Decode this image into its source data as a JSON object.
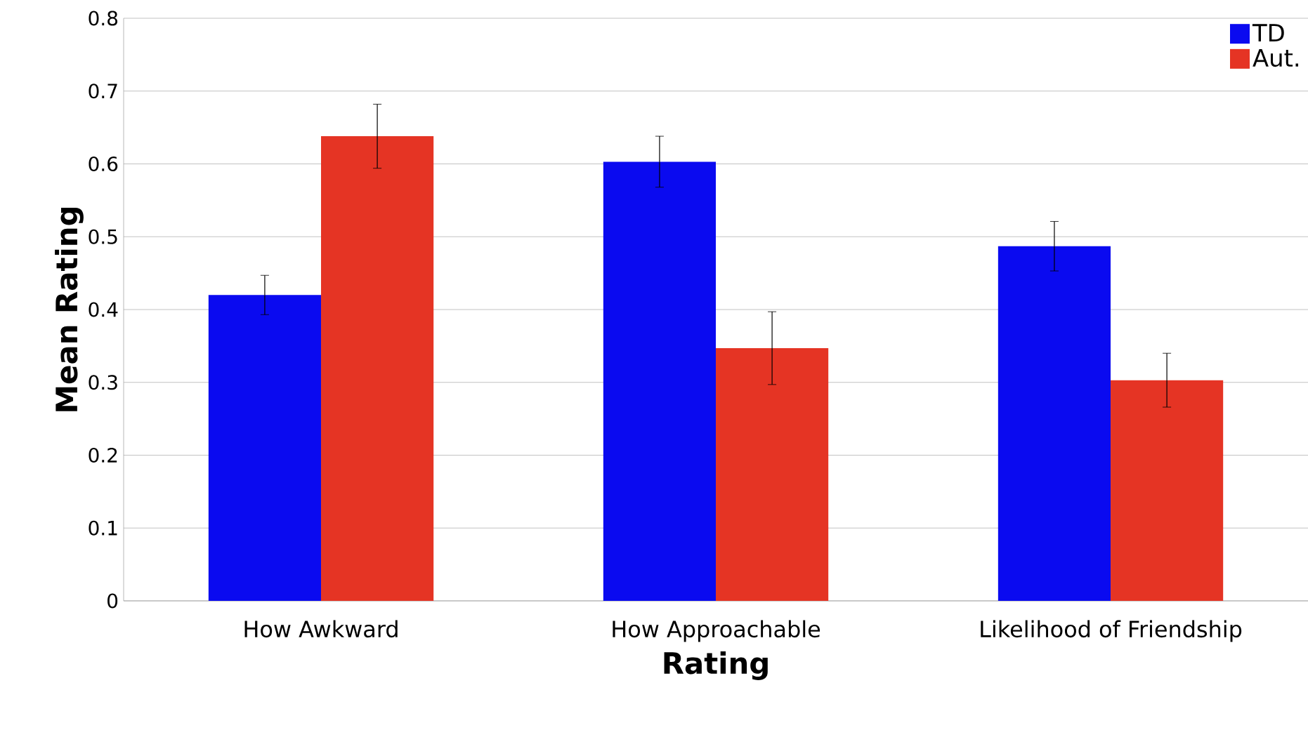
{
  "chart_data": {
    "type": "bar",
    "xlabel": "Rating",
    "ylabel": "Mean Rating",
    "categories": [
      "How Awkward",
      "How Approachable",
      "Likelihood of Friendship"
    ],
    "series": [
      {
        "name": "TD",
        "color": "#0a0af0",
        "values": [
          0.42,
          0.603,
          0.487
        ],
        "errors": [
          0.027,
          0.035,
          0.034
        ]
      },
      {
        "name": "Aut.",
        "color": "#e53424",
        "values": [
          0.638,
          0.347,
          0.303
        ],
        "errors": [
          0.044,
          0.05,
          0.037
        ]
      }
    ],
    "ylim": [
      0,
      0.8
    ],
    "yticks": [
      0,
      0.1,
      0.2,
      0.3,
      0.4,
      0.5,
      0.6,
      0.7,
      0.8
    ],
    "grid": "y",
    "legend": "top right"
  }
}
